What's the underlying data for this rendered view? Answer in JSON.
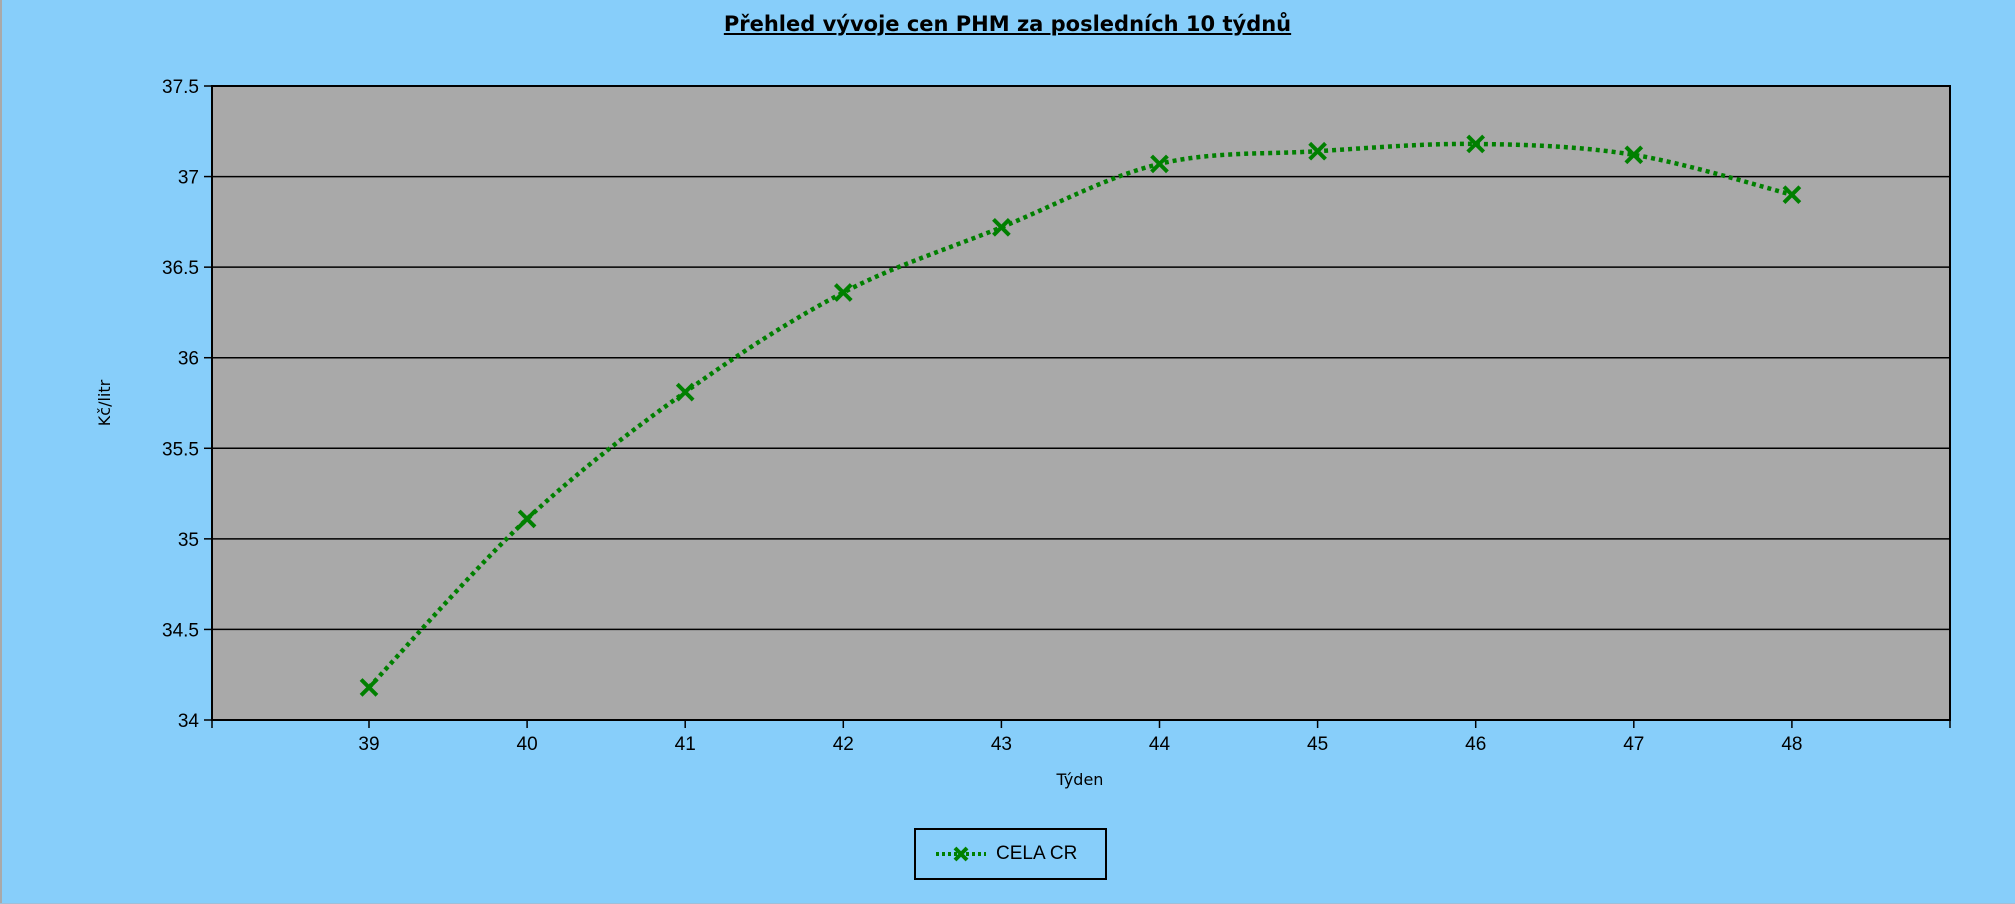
{
  "colors": {
    "background": "#87CEFA",
    "plot_background": "#A9A9A9",
    "series": "#008000",
    "grid": "#000000"
  },
  "chart_data": {
    "type": "line",
    "title": "Přehled vývoje cen PHM za posledních 10 týdnů",
    "xlabel": "Týden",
    "ylabel": "Kč/litr",
    "categories": [
      "39",
      "40",
      "41",
      "42",
      "43",
      "44",
      "45",
      "46",
      "47",
      "48"
    ],
    "ylim": [
      34,
      37.5
    ],
    "yticks": [
      "34",
      "34.5",
      "35",
      "35.5",
      "36",
      "36.5",
      "37",
      "37.5"
    ],
    "grid": true,
    "legend_position": "bottom-center",
    "series": [
      {
        "name": "CELA CR",
        "marker": "x",
        "line_style": "dotted",
        "values": [
          34.18,
          35.11,
          35.81,
          36.36,
          36.72,
          37.07,
          37.14,
          37.18,
          37.12,
          36.9
        ]
      }
    ]
  }
}
